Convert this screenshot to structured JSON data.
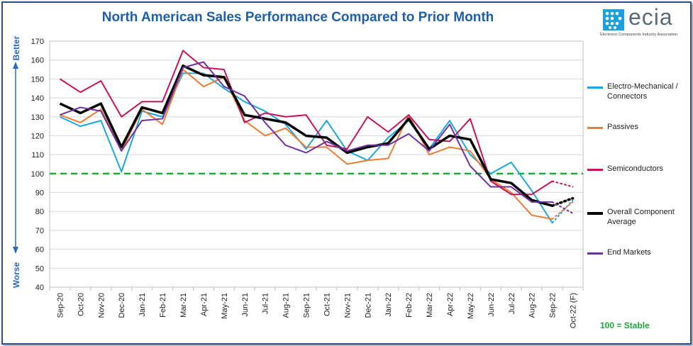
{
  "title": "North American Sales Performance Compared to Prior Month",
  "logo": {
    "word": "ecia",
    "subtitle": "Electronic Components Industry Association"
  },
  "stable_note": "100 = Stable",
  "chart_data": {
    "type": "line",
    "title": "North American Sales Performance Compared to Prior Month",
    "ylim": [
      40,
      170
    ],
    "yticks": [
      40,
      50,
      60,
      70,
      80,
      90,
      100,
      110,
      120,
      130,
      140,
      150,
      160,
      170
    ],
    "y_arrow_labels": {
      "top": "Better",
      "bottom": "Worse"
    },
    "grid": "horizontal",
    "legend_position": "right",
    "categories": [
      "Sep-20",
      "Oct-20",
      "Nov-20",
      "Dec-20",
      "Jan-21",
      "Feb-21",
      "Mar-21",
      "Apr-21",
      "May-21",
      "Jun-21",
      "Jul-21",
      "Aug-21",
      "Sep-21",
      "Oct-21",
      "Nov-21",
      "Dec-21",
      "Jan-22",
      "Feb-22",
      "Mar-22",
      "Apr-22",
      "May-22",
      "Jun-22",
      "Jul-22",
      "Aug-22",
      "Sep-22",
      "Oct-22 (F)"
    ],
    "reference_line": {
      "value": 100,
      "color": "#1faa3a",
      "label": "100 = Stable"
    },
    "forecast_category": "Oct-22 (F)",
    "series": [
      {
        "name": "Electro-Mechanical / Connectors",
        "color": "#1aa7e0",
        "width": 2,
        "values": [
          130,
          125,
          128,
          101,
          133,
          130,
          153,
          153,
          145,
          138,
          133,
          126,
          113,
          128,
          112,
          107,
          119,
          128,
          113,
          128,
          110,
          100,
          106,
          91,
          74,
          86
        ]
      },
      {
        "name": "Passives",
        "color": "#ed7d31",
        "width": 2,
        "values": [
          131,
          127,
          134,
          112,
          134,
          126,
          155,
          146,
          151,
          128,
          120,
          124,
          114,
          114,
          105,
          107,
          108,
          131,
          110,
          114,
          112,
          97,
          90,
          78,
          76,
          85
        ]
      },
      {
        "name": "Semiconductors",
        "color": "#c8125a",
        "width": 2,
        "values": [
          150,
          143,
          149,
          130,
          138,
          138,
          165,
          156,
          155,
          127,
          132,
          130,
          131,
          115,
          113,
          130,
          122,
          131,
          118,
          117,
          129,
          96,
          89,
          89,
          96,
          93
        ]
      },
      {
        "name": "Overall Component Average",
        "color": "#000000",
        "width": 3.5,
        "values": [
          137,
          132,
          137,
          114,
          135,
          132,
          157,
          152,
          151,
          131,
          129,
          127,
          120,
          119,
          111,
          114,
          116,
          129,
          113,
          120,
          118,
          97,
          95,
          86,
          83,
          87
        ]
      },
      {
        "name": "End Markets",
        "color": "#7030a0",
        "width": 2,
        "values": [
          131,
          135,
          133,
          112,
          128,
          129,
          156,
          159,
          146,
          141,
          127,
          115,
          111,
          117,
          112,
          115,
          115,
          121,
          112,
          126,
          104,
          93,
          93,
          85,
          85,
          79
        ]
      }
    ]
  }
}
